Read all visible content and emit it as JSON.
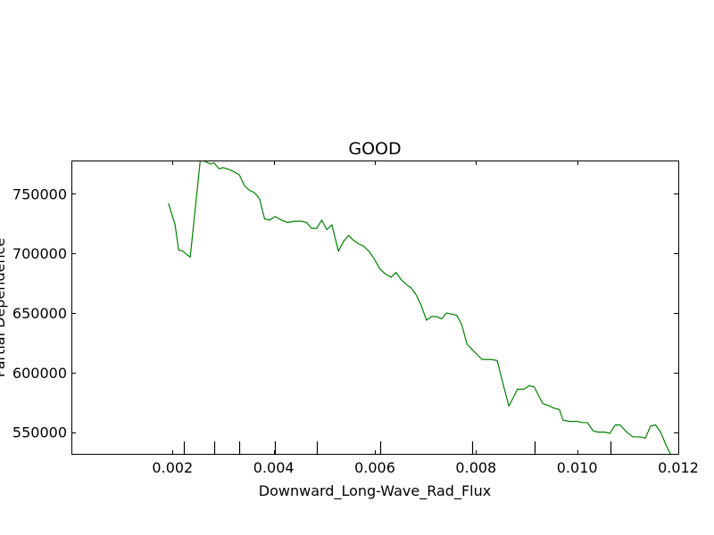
{
  "chart_data": {
    "type": "line",
    "title": "GOOD",
    "xlabel": "Downward_Long-Wave_Rad_Flux",
    "ylabel": "Partial Dependence",
    "xlim": [
      0.0,
      0.012
    ],
    "ylim": [
      531000,
      778000
    ],
    "x_ticks": [
      0.002,
      0.004,
      0.006,
      0.008,
      0.01,
      0.012
    ],
    "x_tick_labels": [
      "0.002",
      "0.004",
      "0.006",
      "0.008",
      "0.010",
      "0.012"
    ],
    "y_ticks": [
      550000,
      600000,
      650000,
      700000,
      750000
    ],
    "y_tick_labels": [
      "550000",
      "600000",
      "650000",
      "700000",
      "750000"
    ],
    "rug": [
      0.00223,
      0.00282,
      0.00332,
      0.00403,
      0.00485,
      0.0061,
      0.00793,
      0.00915,
      0.01065
    ],
    "grid": false,
    "series": [
      {
        "color": "#008000",
        "x": [
          0.00192,
          0.00205,
          0.00212,
          0.0022,
          0.00228,
          0.00235,
          0.00255,
          0.00265,
          0.00275,
          0.00282,
          0.00292,
          0.003,
          0.00315,
          0.00332,
          0.00342,
          0.00352,
          0.00362,
          0.00372,
          0.00382,
          0.00392,
          0.00403,
          0.00415,
          0.00428,
          0.00442,
          0.00455,
          0.00465,
          0.00475,
          0.00485,
          0.00495,
          0.00505,
          0.00515,
          0.00528,
          0.00538,
          0.00548,
          0.00558,
          0.00568,
          0.00578,
          0.00588,
          0.00598,
          0.0061,
          0.0062,
          0.00632,
          0.00642,
          0.00652,
          0.00662,
          0.00672,
          0.00682,
          0.00692,
          0.00702,
          0.00712,
          0.00722,
          0.00732,
          0.00742,
          0.00752,
          0.00762,
          0.00772,
          0.00782,
          0.00793,
          0.00812,
          0.0083,
          0.00842,
          0.00855,
          0.00865,
          0.00875,
          0.00882,
          0.00895,
          0.00905,
          0.00915,
          0.00932,
          0.00945,
          0.00955,
          0.00965,
          0.00972,
          0.00985,
          0.01,
          0.0101,
          0.0102,
          0.01032,
          0.01042,
          0.01055,
          0.01065,
          0.01075,
          0.01085,
          0.01098,
          0.0111,
          0.01125,
          0.01135,
          0.01145,
          0.01155,
          0.01165,
          0.01175,
          0.01185
        ],
        "y": [
          742000,
          724000,
          703000,
          702000,
          699000,
          697000,
          779000,
          777000,
          775000,
          776000,
          771000,
          772000,
          770000,
          766000,
          757000,
          753000,
          751000,
          746000,
          729000,
          728000,
          731000,
          728000,
          726000,
          727000,
          727000,
          726000,
          721000,
          721000,
          728000,
          720000,
          724000,
          702000,
          710000,
          715000,
          711000,
          708000,
          706000,
          702000,
          696000,
          687000,
          683000,
          680000,
          684000,
          678000,
          674000,
          671000,
          665000,
          656000,
          644000,
          647000,
          647000,
          645000,
          650000,
          649000,
          648000,
          640000,
          624000,
          619000,
          611000,
          611000,
          610000,
          588000,
          572000,
          580000,
          586000,
          586000,
          589000,
          588000,
          574000,
          572000,
          570000,
          569000,
          560000,
          559000,
          559000,
          558000,
          558000,
          551000,
          550000,
          550000,
          549000,
          556000,
          556000,
          550000,
          546000,
          546000,
          545000,
          555000,
          556000,
          550000,
          540000,
          531000
        ]
      }
    ]
  }
}
